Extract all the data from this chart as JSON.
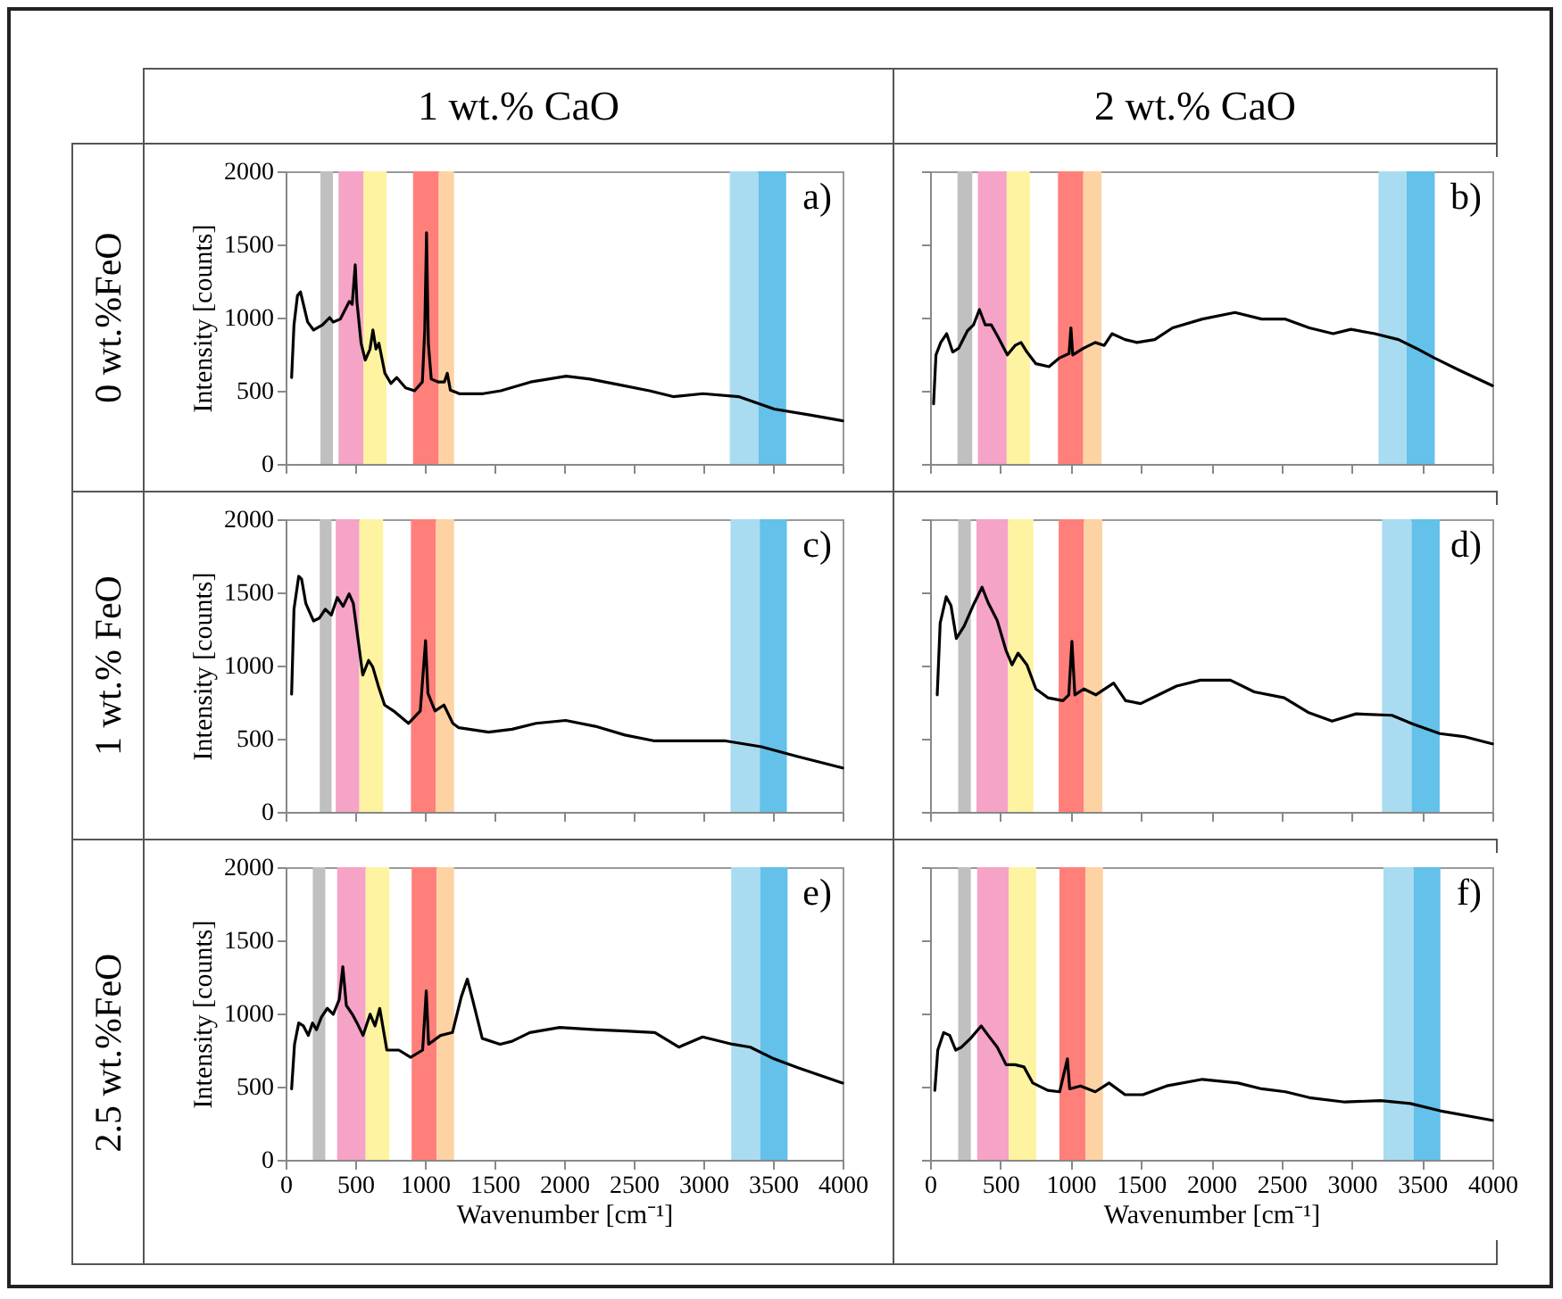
{
  "chart_data": [
    {
      "type": "line",
      "title": "a)",
      "subtitle": "1 wt.% CaO",
      "ylabel": "Intensity [counts]",
      "annotations": [
        "0 wt.%FeO"
      ],
      "tick_labels": "y",
      "xlim": [
        0,
        4000
      ],
      "xticks": [
        0,
        500,
        1000,
        1500,
        2000,
        2500,
        3000,
        3500,
        4000
      ],
      "ylim": [
        0,
        2000
      ],
      "yticks": [
        0,
        500,
        1000,
        1500,
        2000
      ],
      "bands": [
        {
          "axis": "x",
          "from": 250,
          "to": 340,
          "color": "#c0c0c0"
        },
        {
          "axis": "x",
          "from": 380,
          "to": 560,
          "color": "#f5a3c7"
        },
        {
          "axis": "x",
          "from": 560,
          "to": 725,
          "color": "#fdf3a0"
        },
        {
          "axis": "x",
          "from": 915,
          "to": 1100,
          "color": "#ff7f7b"
        },
        {
          "axis": "x",
          "from": 1100,
          "to": 1210,
          "color": "#fdd3a4"
        },
        {
          "axis": "x",
          "from": 3190,
          "to": 3395,
          "color": "#a9dcf0"
        },
        {
          "axis": "x",
          "from": 3395,
          "to": 3595,
          "color": "#63c1ea"
        }
      ],
      "series": [
        {
          "color": "#000000",
          "x": [
            43,
            60,
            85,
            107,
            128,
            158,
            201,
            265,
            316,
            342,
            393,
            457,
            478,
            500,
            512,
            542,
            572,
            606,
            627,
            649,
            670,
            713,
            756,
            798,
            862,
            926,
            982,
            999,
            1012,
            1025,
            1046,
            1097,
            1140,
            1161,
            1183,
            1247,
            1417,
            1545,
            1759,
            2015,
            2186,
            2399,
            2613,
            2783,
            2997,
            3253,
            3509,
            3765,
            4000
          ],
          "values": [
            590,
            950,
            1150,
            1175,
            1090,
            970,
            915,
            950,
            1000,
            970,
            990,
            1110,
            1090,
            1360,
            1110,
            825,
            710,
            785,
            915,
            785,
            825,
            620,
            550,
            590,
            520,
            500,
            560,
            910,
            1580,
            825,
            580,
            560,
            560,
            620,
            505,
            480,
            480,
            500,
            560,
            600,
            580,
            540,
            500,
            460,
            480,
            460,
            375,
            335,
            295
          ]
        }
      ]
    },
    {
      "type": "line",
      "title": "b)",
      "subtitle": "2 wt.% CaO",
      "tick_labels": false,
      "xlim": [
        0,
        4000
      ],
      "xticks": [
        0,
        500,
        1000,
        1500,
        2000,
        2500,
        3000,
        3500,
        4000
      ],
      "ylim": [
        0,
        2000
      ],
      "yticks": [
        0,
        500,
        1000,
        1500,
        2000
      ],
      "bands": [
        {
          "axis": "x",
          "from": 195,
          "to": 300,
          "color": "#c0c0c0"
        },
        {
          "axis": "x",
          "from": 340,
          "to": 545,
          "color": "#f5a3c7"
        },
        {
          "axis": "x",
          "from": 545,
          "to": 710,
          "color": "#fdf3a0"
        },
        {
          "axis": "x",
          "from": 910,
          "to": 1090,
          "color": "#ff7f7b"
        },
        {
          "axis": "x",
          "from": 1090,
          "to": 1220,
          "color": "#fdd3a4"
        },
        {
          "axis": "x",
          "from": 3190,
          "to": 3390,
          "color": "#a9dcf0"
        },
        {
          "axis": "x",
          "from": 3390,
          "to": 3590,
          "color": "#63c1ea"
        }
      ],
      "series": [
        {
          "color": "#000000",
          "x": [
            25,
            42,
            76,
            118,
            161,
            203,
            266,
            309,
            351,
            393,
            436,
            482,
            550,
            605,
            647,
            689,
            753,
            846,
            922,
            989,
            1002,
            1015,
            1091,
            1175,
            1239,
            1294,
            1387,
            1471,
            1598,
            1725,
            1937,
            2169,
            2359,
            2528,
            2698,
            2867,
            2994,
            3163,
            3332,
            3459,
            3586,
            3755,
            4000
          ],
          "values": [
            410,
            745,
            830,
            890,
            765,
            790,
            910,
            950,
            1055,
            950,
            950,
            870,
            745,
            810,
            830,
            765,
            685,
            665,
            725,
            755,
            930,
            745,
            790,
            830,
            810,
            890,
            850,
            830,
            850,
            930,
            990,
            1035,
            990,
            990,
            930,
            890,
            920,
            890,
            850,
            790,
            725,
            645,
            535
          ]
        }
      ]
    },
    {
      "type": "line",
      "title": "c)",
      "ylabel": "Intensity [counts]",
      "annotations": [
        "1 wt.% FeO"
      ],
      "tick_labels": "y",
      "xlim": [
        0,
        4000
      ],
      "xticks": [
        0,
        500,
        1000,
        1500,
        2000,
        2500,
        3000,
        3500,
        4000
      ],
      "ylim": [
        0,
        2000
      ],
      "yticks": [
        0,
        500,
        1000,
        1500,
        2000
      ],
      "bands": [
        {
          "axis": "x",
          "from": 245,
          "to": 330,
          "color": "#c0c0c0"
        },
        {
          "axis": "x",
          "from": 360,
          "to": 530,
          "color": "#f5a3c7"
        },
        {
          "axis": "x",
          "from": 530,
          "to": 700,
          "color": "#fdf3a0"
        },
        {
          "axis": "x",
          "from": 900,
          "to": 1080,
          "color": "#ff7f7b"
        },
        {
          "axis": "x",
          "from": 1080,
          "to": 1210,
          "color": "#fdd3a4"
        },
        {
          "axis": "x",
          "from": 3195,
          "to": 3405,
          "color": "#a9dcf0"
        },
        {
          "axis": "x",
          "from": 3405,
          "to": 3600,
          "color": "#63c1ea"
        }
      ],
      "series": [
        {
          "color": "#000000",
          "x": [
            43,
            60,
            94,
            115,
            145,
            200,
            243,
            285,
            328,
            371,
            413,
            456,
            486,
            520,
            554,
            596,
            626,
            669,
            711,
            775,
            882,
            967,
            1005,
            1022,
            1073,
            1137,
            1201,
            1244,
            1457,
            1627,
            1798,
            2011,
            2224,
            2437,
            2650,
            2905,
            3161,
            3416,
            3672,
            4000
          ],
          "values": [
            805,
            1385,
            1610,
            1590,
            1425,
            1305,
            1325,
            1385,
            1345,
            1465,
            1405,
            1490,
            1425,
            1180,
            935,
            1035,
            990,
            850,
            730,
            690,
            605,
            690,
            1170,
            810,
            690,
            730,
            605,
            575,
            545,
            565,
            605,
            625,
            585,
            525,
            485,
            485,
            485,
            445,
            380,
            300
          ]
        }
      ]
    },
    {
      "type": "line",
      "title": "d)",
      "tick_labels": false,
      "xlim": [
        0,
        4000
      ],
      "xticks": [
        0,
        500,
        1000,
        1500,
        2000,
        2500,
        3000,
        3500,
        4000
      ],
      "ylim": [
        0,
        2000
      ],
      "yticks": [
        0,
        500,
        1000,
        1500,
        2000
      ],
      "bands": [
        {
          "axis": "x",
          "from": 200,
          "to": 290,
          "color": "#c0c0c0"
        },
        {
          "axis": "x",
          "from": 330,
          "to": 555,
          "color": "#f5a3c7"
        },
        {
          "axis": "x",
          "from": 555,
          "to": 735,
          "color": "#fdf3a0"
        },
        {
          "axis": "x",
          "from": 915,
          "to": 1095,
          "color": "#ff7f7b"
        },
        {
          "axis": "x",
          "from": 1095,
          "to": 1225,
          "color": "#fdd3a4"
        },
        {
          "axis": "x",
          "from": 3215,
          "to": 3425,
          "color": "#a9dcf0"
        },
        {
          "axis": "x",
          "from": 3425,
          "to": 3625,
          "color": "#63c1ea"
        }
      ],
      "series": [
        {
          "color": "#000000",
          "x": [
            51,
            72,
            115,
            149,
            187,
            243,
            306,
            370,
            413,
            477,
            540,
            583,
            626,
            689,
            753,
            838,
            945,
            987,
            1009,
            1030,
            1094,
            1179,
            1306,
            1391,
            1498,
            1626,
            1753,
            1923,
            2136,
            2306,
            2519,
            2689,
            2860,
            3030,
            3285,
            3434,
            3626,
            3796,
            4000
          ],
          "values": [
            800,
            1290,
            1470,
            1410,
            1185,
            1270,
            1410,
            1535,
            1430,
            1310,
            1105,
            1005,
            1085,
            1005,
            840,
            780,
            760,
            800,
            1165,
            800,
            840,
            800,
            880,
            760,
            740,
            800,
            860,
            900,
            900,
            820,
            780,
            680,
            620,
            670,
            660,
            600,
            535,
            515,
            465
          ]
        }
      ]
    },
    {
      "type": "line",
      "title": "e)",
      "xlabel": "Wavenumber [cm⁻¹]",
      "ylabel": "Intensity [counts]",
      "annotations": [
        "2.5 wt.%FeO"
      ],
      "xlim": [
        0,
        4000
      ],
      "xticks": [
        0,
        500,
        1000,
        1500,
        2000,
        2500,
        3000,
        3500,
        4000
      ],
      "ylim": [
        0,
        2000
      ],
      "yticks": [
        0,
        500,
        1000,
        1500,
        2000
      ],
      "bands": [
        {
          "axis": "x",
          "from": 195,
          "to": 285,
          "color": "#c0c0c0"
        },
        {
          "axis": "x",
          "from": 370,
          "to": 575,
          "color": "#f5a3c7"
        },
        {
          "axis": "x",
          "from": 575,
          "to": 745,
          "color": "#fdf3a0"
        },
        {
          "axis": "x",
          "from": 905,
          "to": 1085,
          "color": "#ff7f7b"
        },
        {
          "axis": "x",
          "from": 1085,
          "to": 1210,
          "color": "#fdd3a4"
        },
        {
          "axis": "x",
          "from": 3200,
          "to": 3410,
          "color": "#a9dcf0"
        },
        {
          "axis": "x",
          "from": 3410,
          "to": 3605,
          "color": "#63c1ea"
        }
      ],
      "series": [
        {
          "color": "#000000",
          "x": [
            43,
            64,
            94,
            128,
            163,
            193,
            222,
            257,
            299,
            342,
            385,
            411,
            436,
            479,
            513,
            556,
            607,
            642,
            676,
            727,
            813,
            898,
            984,
            1010,
            1027,
            1112,
            1198,
            1262,
            1305,
            1348,
            1412,
            1540,
            1626,
            1754,
            1968,
            2225,
            2439,
            2652,
            2824,
            2995,
            3209,
            3337,
            3508,
            3679,
            4000
          ],
          "values": [
            485,
            790,
            935,
            915,
            850,
            935,
            890,
            975,
            1035,
            995,
            1095,
            1320,
            1055,
            995,
            935,
            850,
            995,
            915,
            1035,
            750,
            750,
            700,
            750,
            1155,
            790,
            850,
            870,
            1115,
            1235,
            1075,
            830,
            790,
            810,
            870,
            905,
            890,
            880,
            870,
            770,
            840,
            790,
            770,
            690,
            630,
            525
          ]
        }
      ]
    },
    {
      "type": "line",
      "title": "f)",
      "xlabel": "Wavenumber [cm⁻¹]",
      "tick_labels": "x",
      "xlim": [
        0,
        4000
      ],
      "xticks": [
        0,
        500,
        1000,
        1500,
        2000,
        2500,
        3000,
        3500,
        4000
      ],
      "ylim": [
        0,
        2000
      ],
      "yticks": [
        0,
        500,
        1000,
        1500,
        2000
      ],
      "bands": [
        {
          "axis": "x",
          "from": 200,
          "to": 290,
          "color": "#c0c0c0"
        },
        {
          "axis": "x",
          "from": 335,
          "to": 560,
          "color": "#f5a3c7"
        },
        {
          "axis": "x",
          "from": 560,
          "to": 755,
          "color": "#fdf3a0"
        },
        {
          "axis": "x",
          "from": 920,
          "to": 1105,
          "color": "#ff7f7b"
        },
        {
          "axis": "x",
          "from": 1105,
          "to": 1230,
          "color": "#fdd3a4"
        },
        {
          "axis": "x",
          "from": 3225,
          "to": 3440,
          "color": "#a9dcf0"
        },
        {
          "axis": "x",
          "from": 3440,
          "to": 3630,
          "color": "#63c1ea"
        }
      ],
      "series": [
        {
          "color": "#000000",
          "x": [
            34,
            55,
            97,
            140,
            182,
            224,
            288,
            364,
            414,
            478,
            541,
            605,
            668,
            731,
            837,
            922,
            977,
            993,
            1070,
            1175,
            1273,
            1387,
            1514,
            1683,
            1937,
            2190,
            2359,
            2529,
            2698,
            2951,
            3205,
            3416,
            3628,
            4000
          ],
          "values": [
            475,
            750,
            870,
            850,
            750,
            770,
            830,
            915,
            850,
            770,
            650,
            650,
            635,
            525,
            475,
            465,
            690,
            485,
            505,
            465,
            525,
            445,
            445,
            505,
            550,
            525,
            485,
            465,
            425,
            395,
            405,
            385,
            335,
            270
          ]
        }
      ]
    }
  ]
}
